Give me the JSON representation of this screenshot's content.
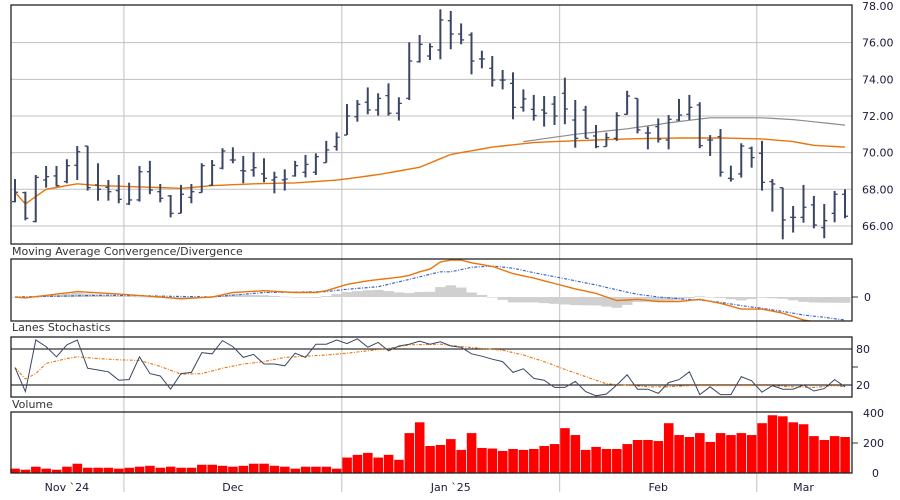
{
  "chart_data": [
    {
      "type": "ohlc",
      "panel": "price",
      "ylim": [
        65,
        78
      ],
      "yticks": [
        "66.00",
        "68.00",
        "70.00",
        "72.00",
        "74.00",
        "76.00",
        "78.00"
      ],
      "ytick_values": [
        66,
        68,
        70,
        72,
        74,
        76,
        78
      ],
      "grid": true,
      "colors": {
        "bars": "#3a4663",
        "ma_short": "#e8740c",
        "ma_long": "#8c8c8c",
        "grid": "#c0c0c0"
      },
      "ohlc": [
        [
          67.33,
          68.56,
          67.29,
          67.84
        ],
        [
          67.82,
          67.87,
          66.31,
          66.42
        ],
        [
          66.24,
          68.78,
          66.2,
          68.65
        ],
        [
          68.51,
          69.27,
          68.09,
          68.69
        ],
        [
          68.73,
          69.27,
          68.15,
          68.2
        ],
        [
          68.42,
          69.64,
          68.33,
          69.29
        ],
        [
          69.31,
          70.36,
          68.51,
          70.05
        ],
        [
          70.36,
          70.36,
          67.93,
          68.09
        ],
        [
          68.24,
          69.42,
          67.38,
          68.0
        ],
        [
          68.11,
          68.51,
          67.38,
          67.87
        ],
        [
          67.93,
          68.78,
          67.24,
          67.45
        ],
        [
          67.2,
          68.36,
          67.15,
          67.42
        ],
        [
          67.42,
          69.27,
          67.33,
          68.96
        ],
        [
          68.96,
          69.55,
          67.73,
          67.96
        ],
        [
          67.87,
          68.29,
          67.29,
          67.51
        ],
        [
          67.64,
          67.69,
          66.47,
          66.69
        ],
        [
          66.69,
          68.24,
          66.69,
          67.73
        ],
        [
          67.56,
          68.29,
          67.24,
          67.87
        ],
        [
          67.82,
          69.42,
          67.82,
          69.29
        ],
        [
          68.22,
          69.6,
          68.18,
          69.31
        ],
        [
          69.15,
          70.24,
          69.09,
          70.09
        ],
        [
          69.6,
          70.29,
          69.42,
          69.6
        ],
        [
          69.02,
          69.82,
          68.33,
          69.0
        ],
        [
          69.05,
          70.02,
          68.69,
          69.18
        ],
        [
          68.84,
          69.69,
          68.38,
          68.6
        ],
        [
          68.51,
          68.96,
          67.78,
          68.66
        ],
        [
          68.51,
          69.09,
          67.93,
          68.56
        ],
        [
          68.73,
          69.55,
          68.69,
          69.29
        ],
        [
          68.93,
          69.87,
          68.65,
          69.36
        ],
        [
          68.93,
          69.96,
          68.78,
          69.78
        ],
        [
          69.45,
          70.64,
          69.45,
          70.15
        ],
        [
          70.33,
          71.11,
          70.11,
          70.84
        ],
        [
          70.96,
          72.65,
          70.96,
          72.0
        ],
        [
          71.96,
          72.87,
          71.69,
          72.64
        ],
        [
          72.75,
          73.56,
          72.09,
          72.33
        ],
        [
          72.33,
          73.24,
          72.02,
          72.96
        ],
        [
          73.11,
          73.78,
          72.02,
          72.15
        ],
        [
          72.15,
          73.02,
          71.75,
          72.69
        ],
        [
          72.96,
          76.02,
          72.87,
          75.0
        ],
        [
          74.96,
          76.42,
          74.91,
          75.91
        ],
        [
          75.27,
          75.96,
          75.05,
          75.78
        ],
        [
          75.6,
          77.82,
          75.09,
          77.24
        ],
        [
          77.2,
          77.73,
          75.64,
          76.47
        ],
        [
          76.47,
          77.05,
          75.91,
          76.15
        ],
        [
          76.42,
          76.56,
          74.27,
          75.0
        ],
        [
          75.11,
          75.56,
          74.6,
          75.11
        ],
        [
          74.6,
          75.27,
          73.6,
          73.96
        ],
        [
          73.96,
          74.51,
          73.45,
          73.96
        ],
        [
          73.78,
          74.38,
          71.82,
          72.47
        ],
        [
          72.47,
          73.45,
          72.24,
          72.93
        ],
        [
          72.36,
          73.15,
          71.75,
          72.02
        ],
        [
          72.33,
          73.09,
          71.42,
          72.15
        ],
        [
          72.65,
          73.09,
          71.51,
          72.0
        ],
        [
          73.24,
          74.09,
          71.55,
          72.38
        ],
        [
          71.78,
          72.87,
          70.27,
          70.78
        ],
        [
          72.33,
          72.55,
          70.78,
          70.78
        ],
        [
          70.91,
          71.51,
          70.24,
          70.33
        ],
        [
          70.33,
          71.09,
          70.33,
          70.82
        ],
        [
          70.78,
          72.2,
          70.64,
          72.02
        ],
        [
          72.09,
          73.38,
          72.07,
          73.09
        ],
        [
          72.96,
          72.96,
          71.05,
          71.24
        ],
        [
          71.07,
          71.42,
          70.18,
          71.07
        ],
        [
          71.42,
          71.87,
          70.55,
          70.73
        ],
        [
          70.69,
          72.05,
          70.18,
          71.82
        ],
        [
          71.78,
          72.93,
          71.73,
          72.05
        ],
        [
          72.09,
          73.15,
          71.78,
          72.47
        ],
        [
          72.6,
          72.75,
          70.24,
          70.38
        ],
        [
          70.69,
          70.96,
          69.82,
          70.69
        ],
        [
          70.87,
          71.29,
          68.69,
          68.93
        ],
        [
          68.6,
          69.29,
          68.42,
          68.56
        ],
        [
          68.84,
          70.51,
          68.64,
          70.36
        ],
        [
          70.24,
          70.33,
          69.18,
          69.73
        ],
        [
          69.96,
          70.64,
          67.93,
          68.38
        ],
        [
          68.42,
          68.56,
          66.78,
          68.29
        ],
        [
          68.09,
          68.09,
          65.27,
          66.33
        ],
        [
          66.47,
          67.09,
          65.64,
          66.47
        ],
        [
          66.47,
          68.24,
          66.18,
          67.02
        ],
        [
          67.15,
          67.64,
          65.87,
          66.05
        ],
        [
          65.91,
          67.2,
          65.33,
          66.29
        ],
        [
          66.69,
          67.91,
          66.2,
          67.73
        ],
        [
          67.73,
          68.0,
          66.42,
          66.53
        ]
      ],
      "ma_short": [
        [
          0,
          67.84
        ],
        [
          1,
          67.2
        ],
        [
          3,
          68.0
        ],
        [
          6,
          68.3
        ],
        [
          8,
          68.2
        ],
        [
          14,
          68.1
        ],
        [
          16,
          68.05
        ],
        [
          19,
          68.2
        ],
        [
          23,
          68.3
        ],
        [
          27,
          68.35
        ],
        [
          31,
          68.5
        ],
        [
          35,
          68.8
        ],
        [
          39,
          69.2
        ],
        [
          42,
          69.9
        ],
        [
          46,
          70.3
        ],
        [
          50,
          70.55
        ],
        [
          54,
          70.65
        ],
        [
          59,
          70.75
        ],
        [
          64,
          70.8
        ],
        [
          68,
          70.8
        ],
        [
          72,
          70.75
        ],
        [
          75,
          70.6
        ],
        [
          77,
          70.4
        ],
        [
          80,
          70.3
        ]
      ],
      "ma_long": [
        [
          49,
          70.6
        ],
        [
          54,
          71.0
        ],
        [
          59,
          71.3
        ],
        [
          64,
          71.7
        ],
        [
          67,
          71.9
        ],
        [
          72,
          71.9
        ],
        [
          75,
          71.8
        ],
        [
          80,
          71.5
        ]
      ],
      "months": [
        {
          "label": "Nov `24",
          "start": 0,
          "end": 10
        },
        {
          "label": "Dec",
          "start": 11,
          "end": 31
        },
        {
          "label": "Jan `25",
          "start": 32,
          "end": 52
        },
        {
          "label": "Feb",
          "start": 53,
          "end": 71
        },
        {
          "label": "Mar",
          "start": 72,
          "end": 80
        }
      ]
    },
    {
      "type": "line",
      "panel": "macd",
      "title": "Moving Average Convergence/Divergence",
      "yticks": [
        "0"
      ],
      "ylim": [
        -1.33,
        2.1
      ],
      "colors": {
        "macd": "#e8740c",
        "signal": "#3a66c8",
        "histogram": "#d0d0d0"
      },
      "macd": [
        [
          0,
          0
        ],
        [
          1,
          -0.05
        ],
        [
          6,
          0.3
        ],
        [
          9,
          0.2
        ],
        [
          14,
          0
        ],
        [
          16,
          -0.1
        ],
        [
          19,
          0
        ],
        [
          21,
          0.25
        ],
        [
          24,
          0.35
        ],
        [
          27,
          0.25
        ],
        [
          29,
          0.25
        ],
        [
          30,
          0.35
        ],
        [
          32,
          0.7
        ],
        [
          34,
          0.9
        ],
        [
          37,
          1.1
        ],
        [
          38,
          1.2
        ],
        [
          39,
          1.4
        ],
        [
          40,
          1.55
        ],
        [
          41,
          1.95
        ],
        [
          42,
          2.05
        ],
        [
          43,
          2.05
        ],
        [
          44,
          1.9
        ],
        [
          46,
          1.7
        ],
        [
          48,
          1.3
        ],
        [
          50,
          1.05
        ],
        [
          52,
          0.75
        ],
        [
          54,
          0.45
        ],
        [
          56,
          0.2
        ],
        [
          58,
          -0.2
        ],
        [
          60,
          -0.13
        ],
        [
          62,
          -0.25
        ],
        [
          64,
          -0.25
        ],
        [
          66,
          -0.13
        ],
        [
          68,
          -0.35
        ],
        [
          70,
          -0.67
        ],
        [
          72,
          -0.67
        ],
        [
          74,
          -0.9
        ],
        [
          76,
          -1.27
        ],
        [
          77,
          -1.37
        ],
        [
          80,
          -1.6
        ]
      ],
      "signal": [
        [
          0,
          0
        ],
        [
          9,
          0.1
        ],
        [
          19,
          0
        ],
        [
          24,
          0.25
        ],
        [
          30,
          0.3
        ],
        [
          32,
          0.43
        ],
        [
          35,
          0.57
        ],
        [
          38,
          0.98
        ],
        [
          41,
          1.4
        ],
        [
          42,
          1.4
        ],
        [
          44,
          1.65
        ],
        [
          46,
          1.72
        ],
        [
          48,
          1.6
        ],
        [
          50,
          1.35
        ],
        [
          52,
          1.13
        ],
        [
          54,
          0.9
        ],
        [
          56,
          0.67
        ],
        [
          58,
          0.4
        ],
        [
          60,
          0.15
        ],
        [
          62,
          0
        ],
        [
          64,
          -0.1
        ],
        [
          66,
          -0.17
        ],
        [
          68,
          -0.3
        ],
        [
          70,
          -0.48
        ],
        [
          72,
          -0.63
        ],
        [
          74,
          -0.8
        ],
        [
          76,
          -1.0
        ],
        [
          78,
          -1.13
        ],
        [
          80,
          -1.28
        ]
      ]
    },
    {
      "type": "line",
      "panel": "stochastics",
      "title": "Lanes Stochastics",
      "ylim": [
        0,
        100
      ],
      "yticks": [
        "80",
        "20"
      ],
      "ytick_values": [
        80,
        20
      ],
      "colors": {
        "k": "#3a4663",
        "d": "#e8740c"
      },
      "k": [
        49,
        9,
        95,
        84,
        67,
        87,
        95,
        48,
        45,
        42,
        28,
        29,
        67,
        39,
        35,
        13,
        39,
        41,
        74,
        72,
        94,
        84,
        66,
        71,
        55,
        55,
        52,
        73,
        66,
        88,
        88,
        95,
        89,
        97,
        83,
        91,
        77,
        85,
        88,
        93,
        88,
        92,
        85,
        83,
        72,
        68,
        63,
        59,
        41,
        47,
        31,
        28,
        16,
        16,
        26,
        9,
        2,
        5,
        20,
        37,
        13,
        13,
        6,
        24,
        29,
        42,
        4,
        17,
        4,
        4,
        34,
        27,
        8,
        19,
        13,
        13,
        20,
        10,
        14,
        29,
        17
      ],
      "d": [
        [
          0,
          49
        ],
        [
          1,
          30
        ],
        [
          2,
          39
        ],
        [
          3,
          56
        ],
        [
          5,
          64
        ],
        [
          6,
          67
        ],
        [
          8,
          64
        ],
        [
          10,
          62
        ],
        [
          12,
          61
        ],
        [
          14,
          51
        ],
        [
          16,
          38
        ],
        [
          18,
          39
        ],
        [
          20,
          48
        ],
        [
          22,
          55
        ],
        [
          24,
          59
        ],
        [
          26,
          66
        ],
        [
          28,
          68
        ],
        [
          30,
          70
        ],
        [
          32,
          73
        ],
        [
          34,
          77
        ],
        [
          36,
          81
        ],
        [
          38,
          87
        ],
        [
          41,
          88
        ],
        [
          43,
          84
        ],
        [
          45,
          81
        ],
        [
          47,
          78
        ],
        [
          49,
          70
        ],
        [
          51,
          59
        ],
        [
          53,
          46
        ],
        [
          55,
          34
        ],
        [
          57,
          22
        ],
        [
          59,
          20
        ],
        [
          61,
          17
        ],
        [
          63,
          17
        ],
        [
          65,
          19
        ],
        [
          67,
          19
        ],
        [
          69,
          19
        ],
        [
          71,
          19
        ],
        [
          73,
          19
        ],
        [
          75,
          17
        ],
        [
          77,
          16
        ],
        [
          79,
          19
        ],
        [
          80,
          17
        ]
      ]
    },
    {
      "type": "bar",
      "panel": "volume",
      "title": "Volume",
      "ylim": [
        0,
        400
      ],
      "yticks": [
        "0",
        "200",
        "400"
      ],
      "ytick_values": [
        0,
        200,
        400
      ],
      "colors": {
        "bars": "#ff0000"
      },
      "values": [
        29,
        22,
        42,
        29,
        22,
        42,
        62,
        35,
        35,
        35,
        29,
        35,
        42,
        48,
        35,
        42,
        35,
        35,
        55,
        55,
        48,
        42,
        48,
        62,
        62,
        48,
        42,
        29,
        42,
        42,
        42,
        29,
        103,
        121,
        134,
        103,
        121,
        88,
        266,
        338,
        180,
        187,
        226,
        154,
        266,
        167,
        163,
        147,
        160,
        154,
        160,
        180,
        193,
        299,
        253,
        154,
        174,
        160,
        160,
        193,
        220,
        220,
        213,
        332,
        253,
        240,
        266,
        207,
        266,
        253,
        266,
        253,
        332,
        385,
        378,
        338,
        325,
        246,
        220,
        246,
        240
      ]
    }
  ]
}
